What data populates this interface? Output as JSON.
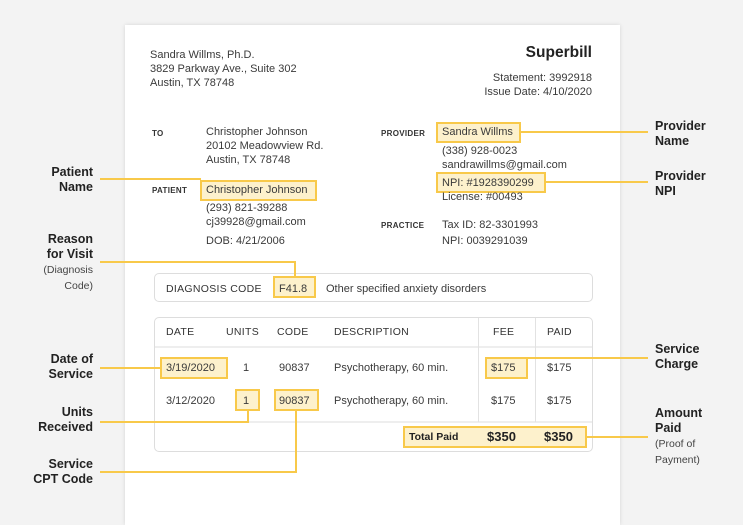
{
  "header": {
    "provider_name": "Sandra Willms, Ph.D.",
    "address1": "3829 Parkway Ave., Suite 302",
    "address2": "Austin, TX 78748",
    "title": "Superbill",
    "statement": "Statement: 3992918",
    "issue_date": "Issue Date: 4/10/2020"
  },
  "to": {
    "label": "TO",
    "name": "Christopher Johnson",
    "address1": "20102 Meadowview Rd.",
    "address2": "Austin, TX 78748"
  },
  "patient": {
    "label": "PATIENT",
    "name": "Christopher Johnson",
    "phone": "(293) 821-39288",
    "email": "cj39928@gmail.com",
    "dob": "DOB: 4/21/2006"
  },
  "provider": {
    "label": "PROVIDER",
    "name": "Sandra Willms",
    "phone": "(338) 928-0023",
    "email": "sandrawillms@gmail.com",
    "npi": "NPI: #1928390299",
    "license": "License: #00493"
  },
  "practice": {
    "label": "PRACTICE",
    "tax_id": "Tax ID: 82-3301993",
    "npi": "NPI: 0039291039"
  },
  "diagnosis": {
    "label": "DIAGNOSIS CODE",
    "code": "F41.8",
    "description": "Other specified anxiety disorders"
  },
  "table": {
    "headers": [
      "DATE",
      "UNITS",
      "CODE",
      "DESCRIPTION",
      "FEE",
      "PAID"
    ],
    "rows": [
      [
        "3/19/2020",
        "1",
        "90837",
        "Psychotherapy, 60 min.",
        "$175",
        "$175"
      ],
      [
        "3/12/2020",
        "1",
        "90837",
        "Psychotherapy, 60 min.",
        "$175",
        "$175"
      ]
    ],
    "total_label": "Total Paid",
    "total_fee": "$350",
    "total_paid": "$350"
  },
  "callouts": {
    "patient_name": [
      "Patient",
      "Name"
    ],
    "reason": [
      "Reason",
      "for Visit",
      "(Diagnosis",
      "Code)"
    ],
    "date_of_service": [
      "Date of",
      "Service"
    ],
    "units": [
      "Units",
      "Received"
    ],
    "cpt": [
      "Service",
      "CPT Code"
    ],
    "provider_name": [
      "Provider",
      "Name"
    ],
    "provider_npi": [
      "Provider",
      "NPI"
    ],
    "service_charge": [
      "Service",
      "Charge"
    ],
    "amount_paid": [
      "Amount",
      "Paid",
      "(Proof of",
      "Payment)"
    ]
  },
  "colors": {
    "highlight_border": "#f8c94a",
    "highlight_fill": "#fdf1cc",
    "background": "#f3f3f3"
  }
}
